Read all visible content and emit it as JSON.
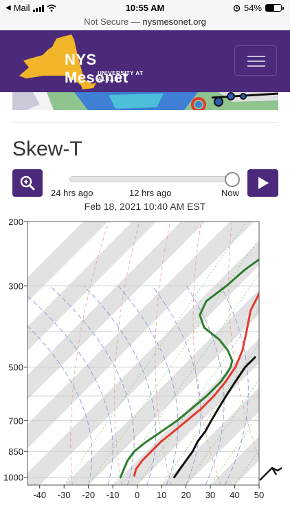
{
  "status_bar": {
    "carrier": "Mail",
    "time": "10:55 AM",
    "battery": "54%",
    "battery_level": 0.54,
    "icons": [
      "back-arrow-icon",
      "signal-icon",
      "wifi-icon",
      "alarm-icon",
      "battery-icon"
    ]
  },
  "url_bar": {
    "security": "Not Secure —",
    "domain": "nysmesonet.org"
  },
  "header": {
    "brand": "NYS Mesonet",
    "subtitle": "UNIVERSITY AT ALBANY",
    "logo_icon": "new-york-state-shape-icon",
    "menu_icon": "hamburger-menu-icon",
    "colors": {
      "brand": "#4b2a7b",
      "logo": "#f2b52a"
    }
  },
  "page": {
    "title": "Skew-T",
    "zoom_icon": "zoom-in-icon",
    "play_icon": "play-icon"
  },
  "time_slider": {
    "labels": [
      "24 hrs ago",
      "12 hrs ago",
      "Now"
    ],
    "value": 1.0,
    "timestamp": "Feb 18, 2021 10:40 AM EST"
  },
  "chart_data": {
    "type": "line",
    "title": "",
    "xlabel": "",
    "ylabel": "",
    "x_ticks": [
      -40,
      -30,
      -20,
      -10,
      0,
      10,
      20,
      30,
      40,
      50
    ],
    "y_ticks": [
      200,
      300,
      500,
      700,
      850,
      1000
    ],
    "xlim": [
      -45,
      50
    ],
    "ylim": [
      1050,
      200
    ],
    "y_scale": "log",
    "skew_deg": 45,
    "grid": true,
    "series": [
      {
        "color": "#e03c31",
        "points": [
          [
            -34,
            260
          ],
          [
            -30,
            300
          ],
          [
            -25,
            350
          ],
          [
            -18,
            400
          ],
          [
            -12,
            450
          ],
          [
            -8,
            500
          ],
          [
            -6,
            550
          ],
          [
            -5,
            600
          ],
          [
            -5,
            650
          ],
          [
            -6,
            700
          ],
          [
            -7,
            750
          ],
          [
            -8,
            800
          ],
          [
            -8,
            850
          ],
          [
            -8,
            900
          ],
          [
            -7,
            950
          ],
          [
            -5,
            990
          ]
        ]
      },
      {
        "color": "#2e7d2e",
        "points": [
          [
            -42,
            250
          ],
          [
            -44,
            270
          ],
          [
            -45,
            300
          ],
          [
            -47,
            330
          ],
          [
            -44,
            360
          ],
          [
            -37,
            390
          ],
          [
            -26,
            420
          ],
          [
            -18,
            450
          ],
          [
            -12,
            480
          ],
          [
            -10,
            500
          ],
          [
            -9,
            520
          ],
          [
            -8,
            550
          ],
          [
            -8,
            600
          ],
          [
            -9,
            650
          ],
          [
            -10,
            700
          ],
          [
            -12,
            750
          ],
          [
            -14,
            800
          ],
          [
            -15,
            850
          ],
          [
            -14,
            900
          ],
          [
            -12,
            950
          ],
          [
            -10,
            1000
          ]
        ]
      },
      {
        "color": "#111111",
        "points": [
          [
            -4,
            470
          ],
          [
            -4,
            500
          ],
          [
            -2,
            550
          ],
          [
            0,
            600
          ],
          [
            2,
            650
          ],
          [
            4,
            700
          ],
          [
            6,
            750
          ],
          [
            7,
            800
          ],
          [
            9,
            850
          ],
          [
            10,
            900
          ],
          [
            11,
            950
          ],
          [
            12,
            1000
          ]
        ]
      }
    ],
    "background_lines": {
      "isotherm_color": "#cccccc",
      "isotherm_bands": "#e2e2e2",
      "dry_adiabat_color": "#e89a9a",
      "moist_adiabat_color": "#8c96d8",
      "mixing_ratio_color": "#7ecb7e"
    }
  }
}
